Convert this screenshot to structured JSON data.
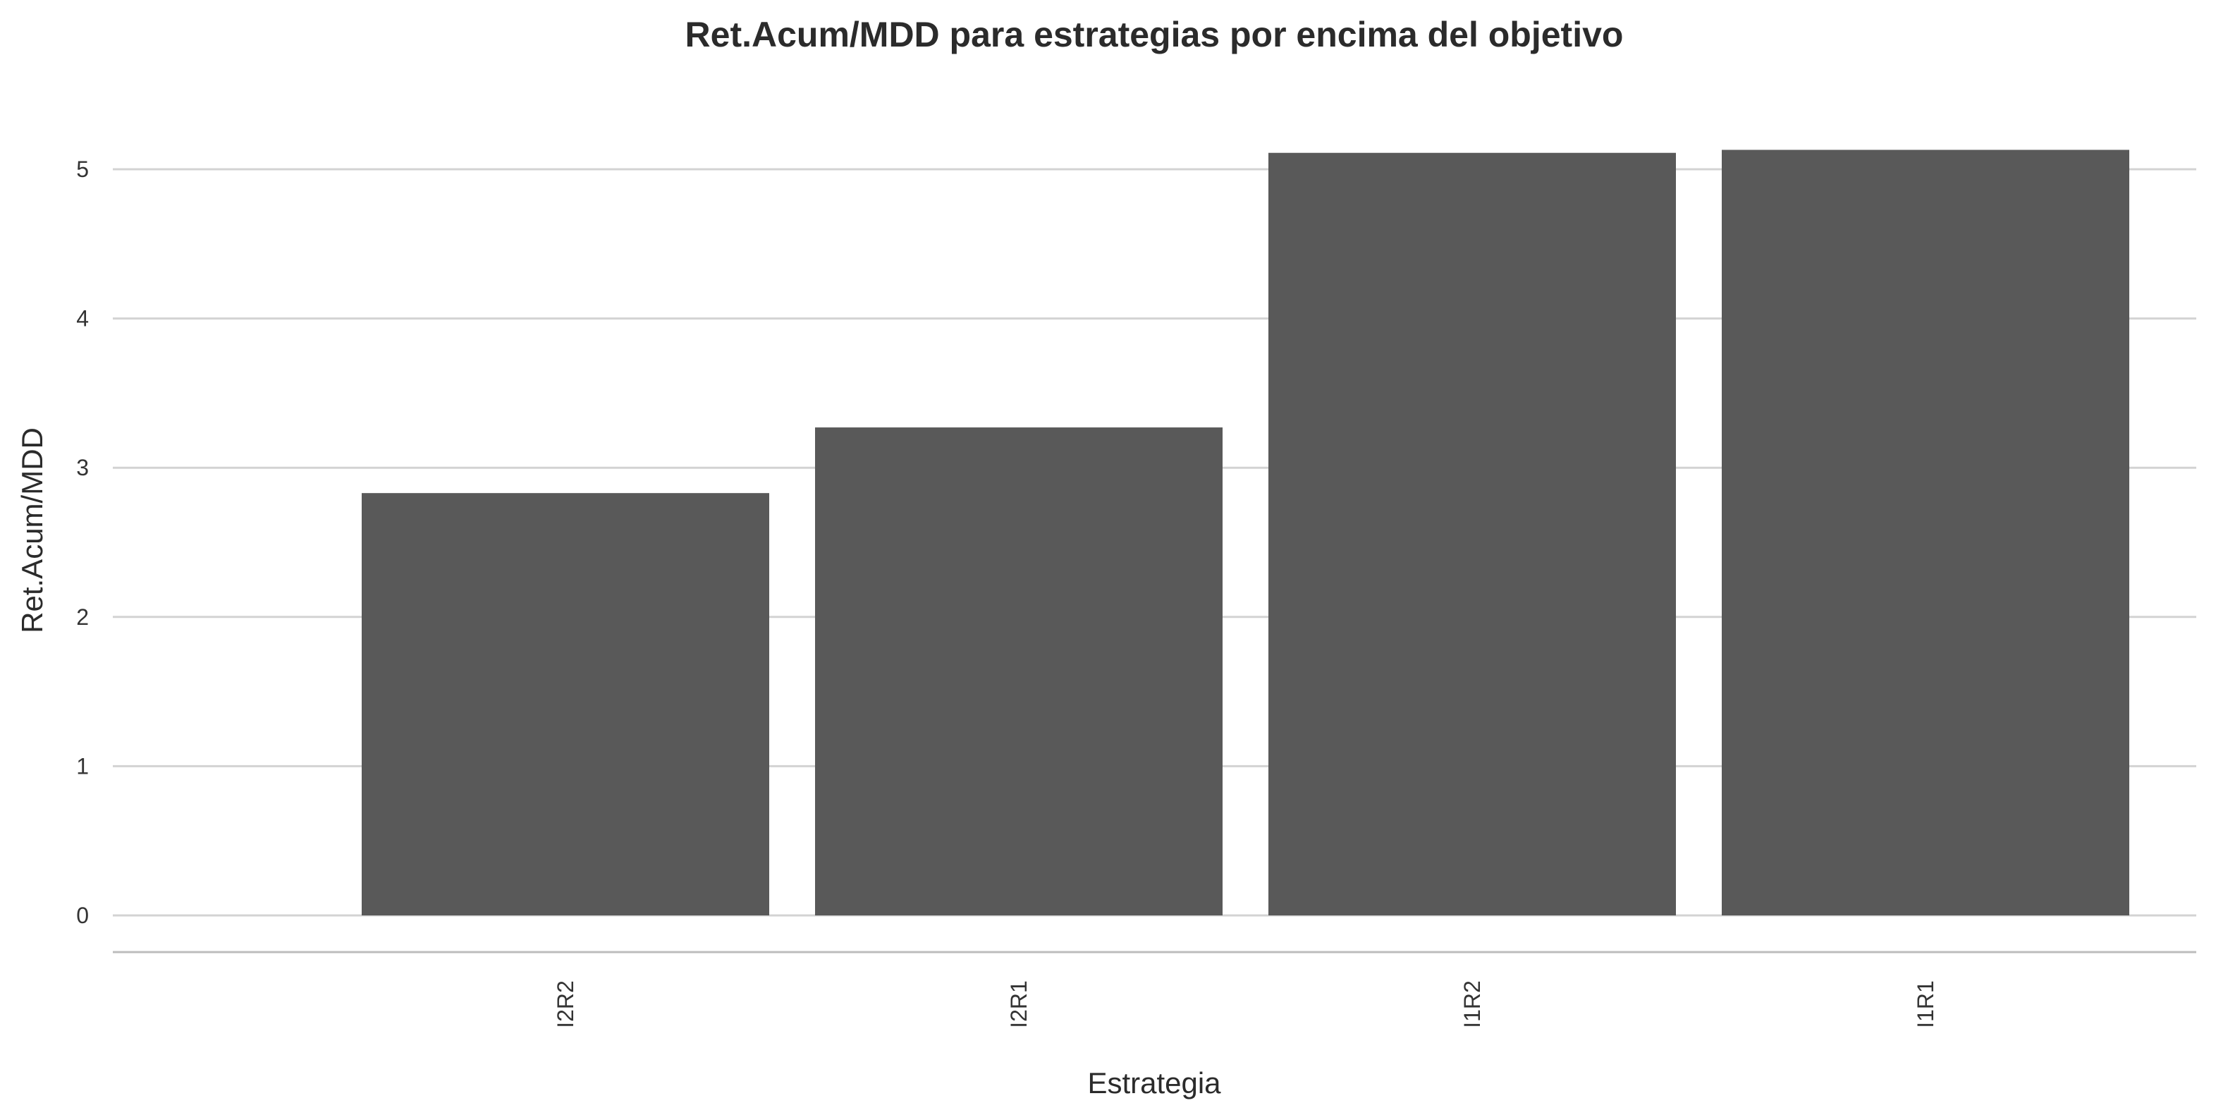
{
  "chart_data": {
    "type": "bar",
    "title": "Ret.Acum/MDD para estrategias por encima del objetivo",
    "xlabel": "Estrategia",
    "ylabel": "Ret.Acum/MDD",
    "categories": [
      "I2R2",
      "I2R1",
      "I1R2",
      "I1R1"
    ],
    "values": [
      2.83,
      3.27,
      5.11,
      5.13
    ],
    "yticks": [
      "0",
      "1",
      "2",
      "3",
      "4",
      "5"
    ],
    "ylim": [
      0,
      5.4
    ],
    "grid": true,
    "bar_color": "#595959",
    "grid_color": "#d3d3d3"
  }
}
